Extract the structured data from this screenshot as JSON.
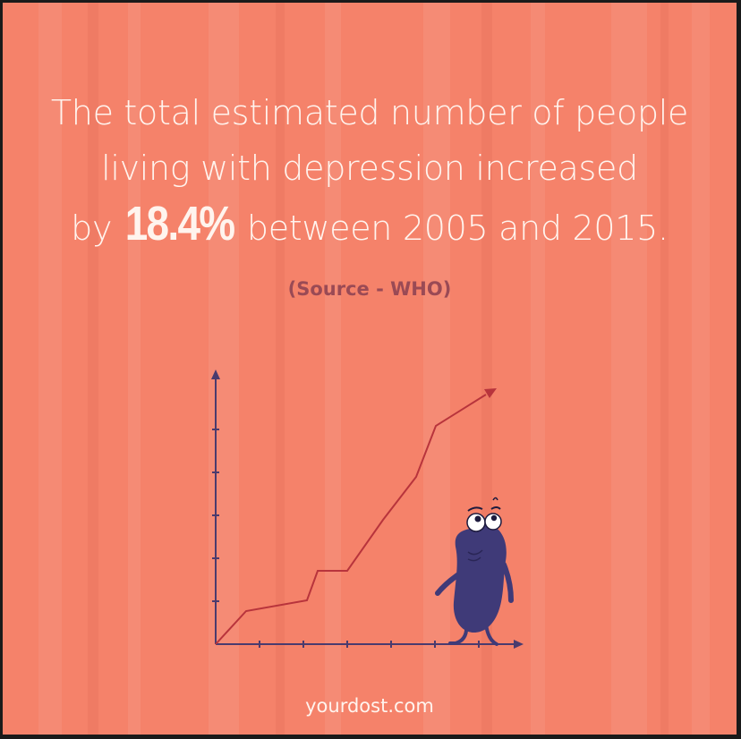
{
  "headline": {
    "line1": "The total estimated number of people",
    "line2": "living with depression increased",
    "line3_prefix": "by",
    "highlight": "18.4%",
    "line3_suffix": "between 2005 and 2015."
  },
  "source": "(Source - WHO)",
  "footer": "yourdost.com",
  "colors": {
    "background": "#f5826a",
    "text": "#fff4ee",
    "source_text": "#9a4a55",
    "axis": "#4a3b6e",
    "trend_line": "#b8343c",
    "character": "#3f3a78"
  },
  "icons": {
    "trend_chart": "line-chart-icon",
    "character": "worried-character-icon"
  }
}
